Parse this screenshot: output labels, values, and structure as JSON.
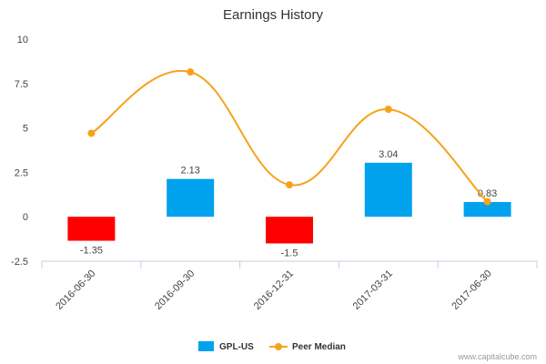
{
  "chart_data": {
    "type": "bar",
    "title": "Earnings History",
    "categories": [
      "2016-06-30",
      "2016-09-30",
      "2016-12-31",
      "2017-03-31",
      "2017-06-30"
    ],
    "series": [
      {
        "name": "GPL-US",
        "kind": "bar",
        "values": [
          -1.35,
          2.13,
          -1.5,
          3.04,
          0.83
        ],
        "labels": [
          "-1.35",
          "2.13",
          "-1.5",
          "3.04",
          "0.83"
        ],
        "positive_color": "#00a2ed",
        "negative_color": "#ff0000"
      },
      {
        "name": "Peer Median",
        "kind": "line",
        "values": [
          4.7,
          8.15,
          1.8,
          6.05,
          0.85
        ],
        "color": "#f7a21b"
      }
    ],
    "ylim": [
      -2.5,
      10
    ],
    "yticks": [
      -2.5,
      0,
      2.5,
      5,
      7.5,
      10
    ],
    "ytick_labels": [
      "-2.5",
      "0",
      "2.5",
      "5",
      "7.5",
      "10"
    ],
    "xlabel": "",
    "ylabel": "",
    "grid": false,
    "legend_position": "bottom-center"
  },
  "credit": "www.capitalcube.com"
}
